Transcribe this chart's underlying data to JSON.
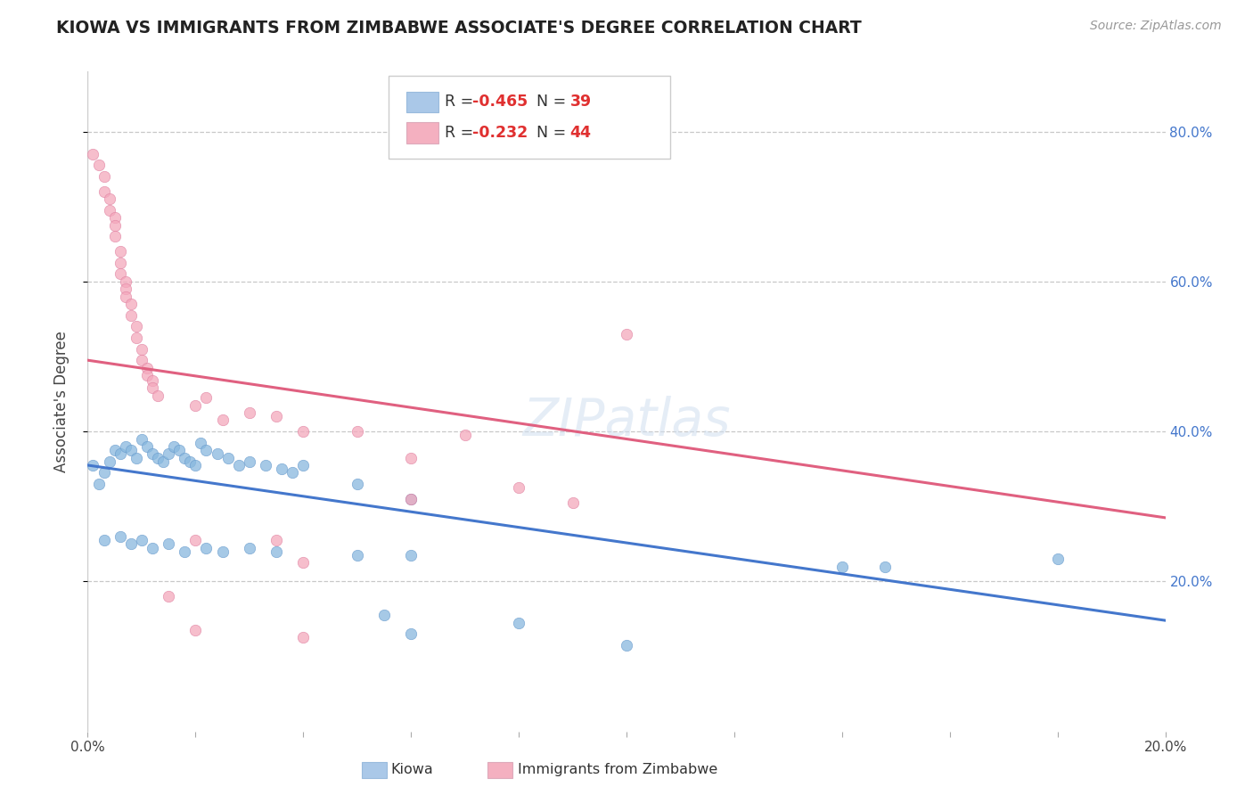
{
  "title": "KIOWA VS IMMIGRANTS FROM ZIMBABWE ASSOCIATE'S DEGREE CORRELATION CHART",
  "source": "Source: ZipAtlas.com",
  "ylabel": "Associate's Degree",
  "xlim": [
    0.0,
    0.2
  ],
  "ylim": [
    0.0,
    0.88
  ],
  "yticks": [
    0.2,
    0.4,
    0.6,
    0.8
  ],
  "ytick_labels": [
    "20.0%",
    "40.0%",
    "60.0%",
    "80.0%"
  ],
  "background_color": "#ffffff",
  "grid_color": "#c8c8c8",
  "watermark_text": "ZIPatlas",
  "blue_scatter": [
    [
      0.001,
      0.355
    ],
    [
      0.002,
      0.33
    ],
    [
      0.003,
      0.345
    ],
    [
      0.004,
      0.36
    ],
    [
      0.005,
      0.375
    ],
    [
      0.006,
      0.37
    ],
    [
      0.007,
      0.38
    ],
    [
      0.008,
      0.375
    ],
    [
      0.009,
      0.365
    ],
    [
      0.01,
      0.39
    ],
    [
      0.011,
      0.38
    ],
    [
      0.012,
      0.37
    ],
    [
      0.013,
      0.365
    ],
    [
      0.014,
      0.36
    ],
    [
      0.015,
      0.37
    ],
    [
      0.016,
      0.38
    ],
    [
      0.017,
      0.375
    ],
    [
      0.018,
      0.365
    ],
    [
      0.019,
      0.36
    ],
    [
      0.02,
      0.355
    ],
    [
      0.021,
      0.385
    ],
    [
      0.022,
      0.375
    ],
    [
      0.024,
      0.37
    ],
    [
      0.026,
      0.365
    ],
    [
      0.028,
      0.355
    ],
    [
      0.03,
      0.36
    ],
    [
      0.033,
      0.355
    ],
    [
      0.036,
      0.35
    ],
    [
      0.038,
      0.345
    ],
    [
      0.04,
      0.355
    ],
    [
      0.05,
      0.33
    ],
    [
      0.06,
      0.31
    ],
    [
      0.003,
      0.255
    ],
    [
      0.006,
      0.26
    ],
    [
      0.008,
      0.25
    ],
    [
      0.01,
      0.255
    ],
    [
      0.012,
      0.245
    ],
    [
      0.015,
      0.25
    ],
    [
      0.018,
      0.24
    ],
    [
      0.022,
      0.245
    ],
    [
      0.025,
      0.24
    ],
    [
      0.03,
      0.245
    ],
    [
      0.035,
      0.24
    ],
    [
      0.05,
      0.235
    ],
    [
      0.06,
      0.235
    ],
    [
      0.14,
      0.22
    ],
    [
      0.148,
      0.22
    ],
    [
      0.18,
      0.23
    ],
    [
      0.08,
      0.145
    ],
    [
      0.1,
      0.115
    ],
    [
      0.06,
      0.13
    ],
    [
      0.055,
      0.155
    ]
  ],
  "pink_scatter": [
    [
      0.001,
      0.77
    ],
    [
      0.002,
      0.755
    ],
    [
      0.003,
      0.74
    ],
    [
      0.003,
      0.72
    ],
    [
      0.004,
      0.71
    ],
    [
      0.004,
      0.695
    ],
    [
      0.005,
      0.685
    ],
    [
      0.005,
      0.675
    ],
    [
      0.005,
      0.66
    ],
    [
      0.006,
      0.64
    ],
    [
      0.006,
      0.625
    ],
    [
      0.006,
      0.61
    ],
    [
      0.007,
      0.6
    ],
    [
      0.007,
      0.59
    ],
    [
      0.007,
      0.58
    ],
    [
      0.008,
      0.57
    ],
    [
      0.008,
      0.555
    ],
    [
      0.009,
      0.54
    ],
    [
      0.009,
      0.525
    ],
    [
      0.01,
      0.51
    ],
    [
      0.01,
      0.495
    ],
    [
      0.011,
      0.485
    ],
    [
      0.011,
      0.475
    ],
    [
      0.012,
      0.468
    ],
    [
      0.012,
      0.458
    ],
    [
      0.013,
      0.448
    ],
    [
      0.02,
      0.435
    ],
    [
      0.022,
      0.445
    ],
    [
      0.025,
      0.415
    ],
    [
      0.03,
      0.425
    ],
    [
      0.035,
      0.42
    ],
    [
      0.04,
      0.4
    ],
    [
      0.05,
      0.4
    ],
    [
      0.06,
      0.365
    ],
    [
      0.07,
      0.395
    ],
    [
      0.08,
      0.325
    ],
    [
      0.09,
      0.305
    ],
    [
      0.1,
      0.53
    ],
    [
      0.02,
      0.255
    ],
    [
      0.035,
      0.255
    ],
    [
      0.04,
      0.225
    ],
    [
      0.06,
      0.31
    ],
    [
      0.015,
      0.18
    ],
    [
      0.02,
      0.135
    ],
    [
      0.04,
      0.125
    ]
  ],
  "blue_line_x": [
    0.0,
    0.2
  ],
  "blue_line_y": [
    0.355,
    0.148
  ],
  "pink_line_x": [
    0.0,
    0.2
  ],
  "pink_line_y": [
    0.495,
    0.285
  ],
  "blue_line_color": "#4477cc",
  "pink_line_color": "#e06080",
  "scatter_blue_color": "#88b8de",
  "scatter_blue_edge": "#6699cc",
  "scatter_pink_color": "#f4a8bc",
  "scatter_pink_edge": "#e080a0",
  "scatter_alpha": 0.75,
  "scatter_size": 80,
  "legend_blue_color": "#aac8e8",
  "legend_pink_color": "#f4b0c0",
  "legend_r_color": "#e03030",
  "legend_n_color": "#e03030"
}
